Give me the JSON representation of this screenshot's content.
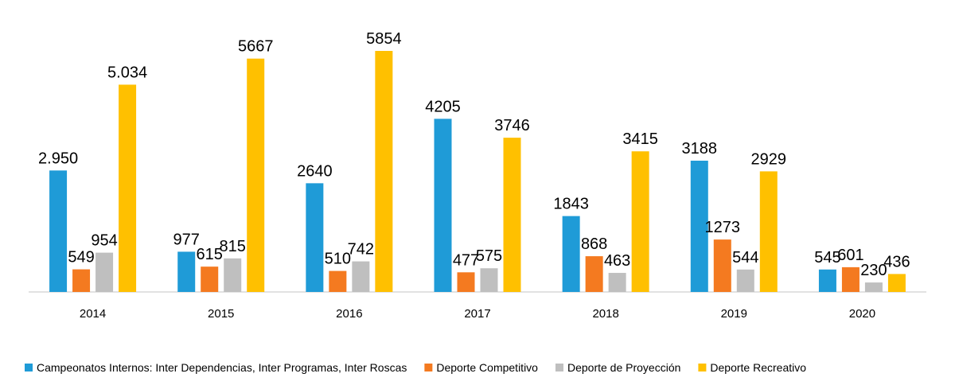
{
  "chart_data": {
    "type": "bar",
    "categories": [
      "2014",
      "2015",
      "2016",
      "2017",
      "2018",
      "2019",
      "2020"
    ],
    "series": [
      {
        "name": "Campeonatos Internos: Inter Dependencias, Inter Programas, Inter Roscas",
        "color": "#1f9bd7",
        "values": [
          2950,
          977,
          2640,
          4205,
          1843,
          3188,
          545
        ],
        "labels": [
          "2.950",
          "977",
          "2640",
          "4205",
          "1843",
          "3188",
          "545"
        ]
      },
      {
        "name": "Deporte Competitivo",
        "color": "#f47a20",
        "values": [
          549,
          615,
          510,
          477,
          868,
          1273,
          601
        ],
        "labels": [
          "549",
          "615",
          "510",
          "477",
          "868",
          "1273",
          "601"
        ]
      },
      {
        "name": "Deporte de Proyección",
        "color": "#bfbfbf",
        "values": [
          954,
          815,
          742,
          575,
          463,
          544,
          230
        ],
        "labels": [
          "954",
          "815",
          "742",
          "575",
          "463",
          "544",
          "230"
        ]
      },
      {
        "name": "Deporte Recreativo",
        "color": "#ffc000",
        "values": [
          5034,
          5667,
          5854,
          3746,
          3415,
          2929,
          436
        ],
        "labels": [
          "5.034",
          "5667",
          "5854",
          "3746",
          "3415",
          "2929",
          "436"
        ]
      }
    ],
    "title": "",
    "xlabel": "",
    "ylabel": "",
    "ylim": [
      0,
      5854
    ],
    "grid": false,
    "legend": "bottom"
  }
}
